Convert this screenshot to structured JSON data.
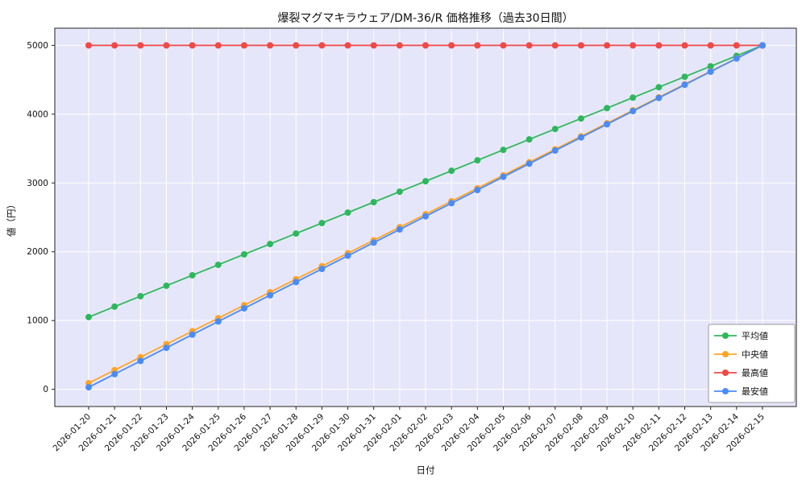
{
  "chart_data": {
    "type": "line",
    "title": "爆裂マグマキラウェア/DM-36/R 価格推移（過去30日間）",
    "xlabel": "日付",
    "ylabel": "値（円）",
    "x": [
      "2026-01-20",
      "2026-01-21",
      "2026-01-22",
      "2026-01-23",
      "2026-01-24",
      "2026-01-25",
      "2026-01-26",
      "2026-01-27",
      "2026-01-28",
      "2026-01-29",
      "2026-01-30",
      "2026-01-31",
      "2026-02-01",
      "2026-02-02",
      "2026-02-03",
      "2026-02-04",
      "2026-02-05",
      "2026-02-06",
      "2026-02-07",
      "2026-02-08",
      "2026-02-09",
      "2026-02-10",
      "2026-02-11",
      "2026-02-12",
      "2026-02-13",
      "2026-02-14",
      "2026-02-15"
    ],
    "series": [
      {
        "name": "平均値",
        "key": "average",
        "color": "#2eb85c",
        "values": [
          1050,
          1202,
          1354,
          1506,
          1658,
          1810,
          1962,
          2113,
          2265,
          2417,
          2569,
          2721,
          2873,
          3025,
          3177,
          3329,
          3481,
          3633,
          3785,
          3937,
          4088,
          4240,
          4392,
          4544,
          4696,
          4848,
          5000
        ]
      },
      {
        "name": "中央値",
        "key": "median",
        "color": "#ffa426",
        "values": [
          90,
          279,
          468,
          657,
          845,
          1034,
          1223,
          1412,
          1601,
          1790,
          1979,
          2167,
          2356,
          2545,
          2734,
          2923,
          3112,
          3301,
          3489,
          3678,
          3867,
          4056,
          4245,
          4434,
          4623,
          4811,
          5000
        ]
      },
      {
        "name": "最高値",
        "key": "max",
        "color": "#f04946",
        "values": [
          5000,
          5000,
          5000,
          5000,
          5000,
          5000,
          5000,
          5000,
          5000,
          5000,
          5000,
          5000,
          5000,
          5000,
          5000,
          5000,
          5000,
          5000,
          5000,
          5000,
          5000,
          5000,
          5000,
          5000,
          5000,
          5000,
          5000
        ]
      },
      {
        "name": "最安値",
        "key": "min",
        "color": "#4a8cf7",
        "values": [
          30,
          221,
          412,
          603,
          795,
          986,
          1177,
          1368,
          1559,
          1750,
          1942,
          2133,
          2324,
          2515,
          2706,
          2897,
          3089,
          3280,
          3471,
          3662,
          3853,
          4044,
          4236,
          4427,
          4618,
          4809,
          5000
        ]
      }
    ],
    "ylim": [
      0,
      5000
    ],
    "yticks": [
      0,
      1000,
      2000,
      3000,
      4000,
      5000
    ],
    "grid": true,
    "grid_color": "#ffffff",
    "plot_bg": "#e6e6fa",
    "spine_color": "#222222",
    "legend_position": "lower right"
  }
}
